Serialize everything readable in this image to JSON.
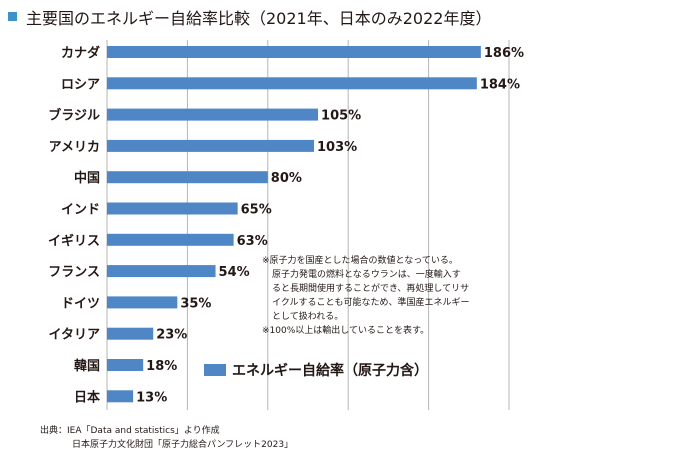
{
  "title": "主要国のエネルギー自給率比較（2021年、日本のみ2022年度）",
  "chart_data": {
    "type": "bar",
    "orientation": "horizontal",
    "title": "主要国のエネルギー自給率比較（2021年、日本のみ2022年度）",
    "categories": [
      "カナダ",
      "ロシア",
      "ブラジル",
      "アメリカ",
      "中国",
      "インド",
      "イギリス",
      "フランス",
      "ドイツ",
      "イタリア",
      "韓国",
      "日本"
    ],
    "values": [
      186,
      184,
      105,
      103,
      80,
      65,
      63,
      54,
      35,
      23,
      18,
      13
    ],
    "value_suffix": "%",
    "series_name": "エネルギー自給率（原子力含）",
    "xlim": [
      0,
      200
    ],
    "grid_every": 40,
    "legend": "bottom-center",
    "color": "#4f86c6"
  },
  "notes": [
    "※原子力を国産とした場合の数値となっている。",
    "原子力発電の燃料となるウランは、一度輸入す",
    "ると長期間使用することができ、再処理してリサ",
    "イクルすることも可能なため、準国産エネルギー",
    "として扱われる。",
    "※100%以上は輸出していることを表す。"
  ],
  "legend_label": "エネルギー自給率（原子力含）",
  "source": {
    "line1": "出典：IEA「Data and statistics」より作成",
    "line2": "日本原子力文化財団「原子力総合パンフレット2023」"
  },
  "colors": {
    "bar": "#4f86c6",
    "title_marker": "#3b93c9",
    "grid": "#b5b5b5"
  }
}
